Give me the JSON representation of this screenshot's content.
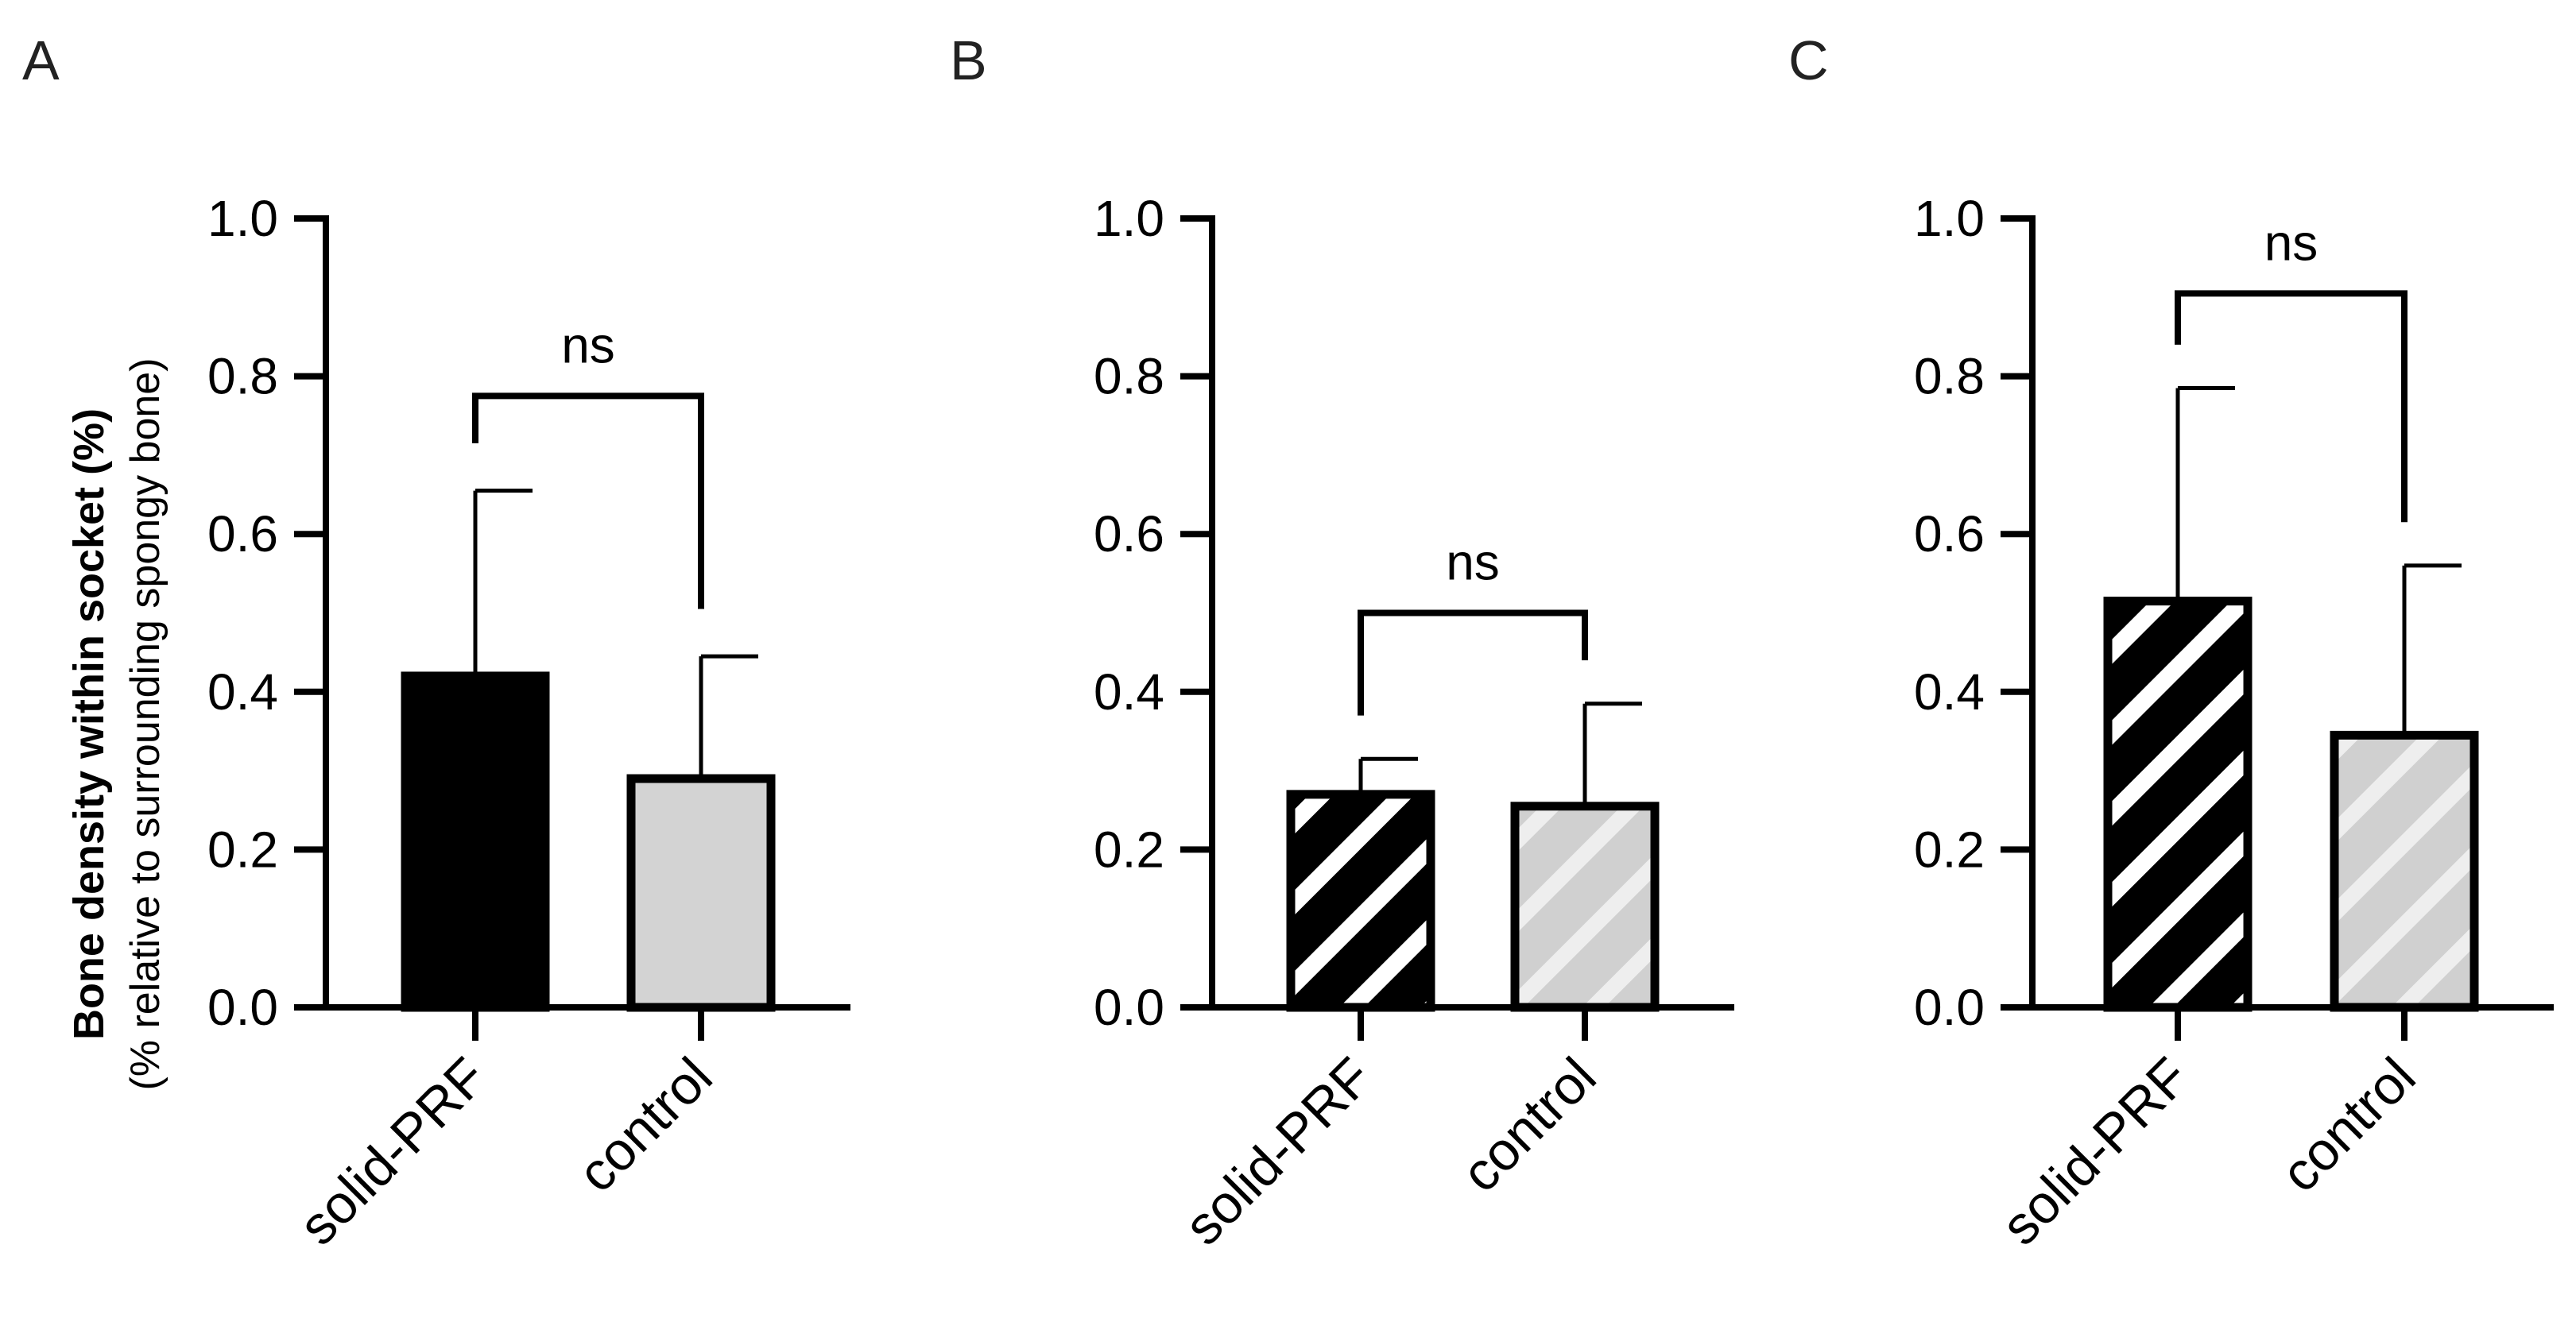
{
  "chart_data": [
    {
      "type": "bar",
      "panel": "A",
      "categories": [
        "solid-PRF",
        "control"
      ],
      "values": [
        0.42,
        0.29
      ],
      "errors": [
        0.235,
        0.155
      ],
      "bar_colors": [
        "#000000",
        "#d3d3d3"
      ],
      "pattern": "solid",
      "ylabel": "Bone density within socket (%)",
      "ylabel_sub": "(% relative to surrounding spongy bone)",
      "ylim": [
        0,
        1.0
      ],
      "yticks": [
        "0.0",
        "0.2",
        "0.4",
        "0.6",
        "0.8",
        "1.0"
      ],
      "significance": {
        "label": "ns",
        "bracket_value": 0.775,
        "left_value": 0.715,
        "right_value": 0.505
      }
    },
    {
      "type": "bar",
      "panel": "B",
      "categories": [
        "solid-PRF",
        "control"
      ],
      "values": [
        0.27,
        0.255
      ],
      "errors": [
        0.045,
        0.13
      ],
      "bar_colors": [
        "#000000",
        "#d3d3d3"
      ],
      "pattern": "striped",
      "ylim": [
        0,
        1.0
      ],
      "yticks": [
        "0.0",
        "0.2",
        "0.4",
        "0.6",
        "0.8",
        "1.0"
      ],
      "significance": {
        "label": "ns",
        "bracket_value": 0.5,
        "left_value": 0.37,
        "right_value": 0.44
      }
    },
    {
      "type": "bar",
      "panel": "C",
      "categories": [
        "solid-PRF",
        "control"
      ],
      "values": [
        0.515,
        0.345
      ],
      "errors": [
        0.27,
        0.215
      ],
      "bar_colors": [
        "#000000",
        "#d3d3d3"
      ],
      "pattern": "striped",
      "ylim": [
        0,
        1.0
      ],
      "yticks": [
        "0.0",
        "0.2",
        "0.4",
        "0.6",
        "0.8",
        "1.0"
      ],
      "significance": {
        "label": "ns",
        "bracket_value": 0.905,
        "left_value": 0.84,
        "right_value": 0.615
      }
    }
  ]
}
